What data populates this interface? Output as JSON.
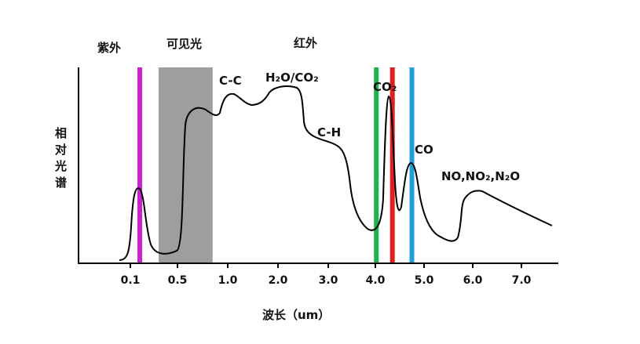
{
  "chart_data": {
    "type": "line",
    "title": "",
    "xlabel": "波长（um）",
    "ylabel": [
      "相",
      "对",
      "光",
      "谱"
    ],
    "x_ticks": [
      "0.1",
      "0.5",
      "1.0",
      "2.0",
      "3.0",
      "4.0",
      "5.0",
      "6.0",
      "7.0"
    ],
    "regions": [
      {
        "label": "紫外"
      },
      {
        "label": "可见光"
      },
      {
        "label": "红外"
      }
    ],
    "visible_band": {
      "from": 0.34,
      "to": 0.85,
      "color": "#9e9e9e"
    },
    "marker_lines": [
      {
        "name": "violet",
        "x": 0.18,
        "color": "#cc1fd6"
      },
      {
        "name": "green",
        "x": 4.02,
        "color": "#1db34a"
      },
      {
        "name": "red",
        "x": 4.35,
        "color": "#e01f1f"
      },
      {
        "name": "blue",
        "x": 4.75,
        "color": "#21a0d8"
      }
    ],
    "peak_labels": [
      "C-C",
      "H₂O/CO₂",
      "C-H",
      "CO₂",
      "CO",
      "NO,NO₂,N₂O"
    ],
    "curve_color": "#000000",
    "grid": false
  }
}
